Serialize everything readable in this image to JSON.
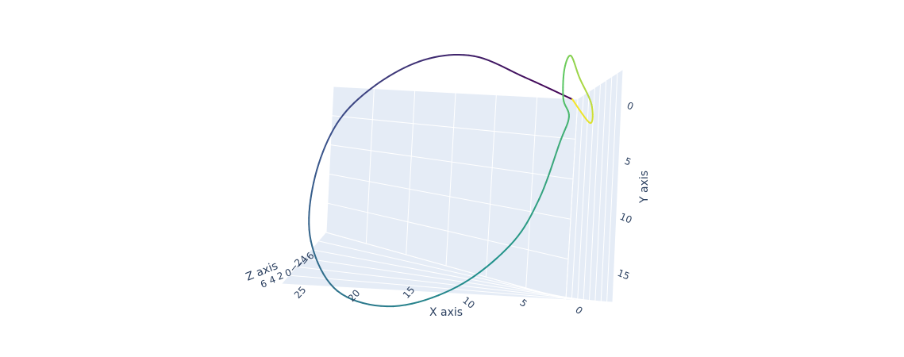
{
  "chart_data": {
    "type": "line",
    "subtype": "3d-line",
    "colorscale": "viridis",
    "colors": [
      "#440154",
      "#3b528b",
      "#21918c",
      "#5ec962",
      "#fde725"
    ],
    "axes": {
      "x": {
        "label": "X axis",
        "ticks": [
          "0",
          "5",
          "10",
          "15",
          "20",
          "25"
        ]
      },
      "y": {
        "label": "Y axis",
        "ticks": [
          "0",
          "5",
          "10",
          "15"
        ]
      },
      "z": {
        "label": "Z axis",
        "ticks": [
          "6",
          "4",
          "2",
          "0",
          "−2",
          "−4",
          "−6"
        ]
      }
    },
    "series": [
      {
        "x": [
          0.3,
          5,
          10,
          15,
          20,
          24,
          26.5,
          27,
          24.5,
          19,
          12.5,
          7,
          4,
          1.7,
          0.7,
          1.2,
          1.0,
          0.3,
          -0.5,
          -1.6,
          -1.4,
          0.3
        ],
        "y": [
          -0.2,
          -2.1,
          -3.9,
          -3.3,
          -0.6,
          3.3,
          9.0,
          14.7,
          19.4,
          20.6,
          18.4,
          14.1,
          9.6,
          4.0,
          1.5,
          -0.2,
          -3.0,
          -4.4,
          -2.3,
          0.2,
          2.0,
          -0.2
        ]
      }
    ]
  }
}
